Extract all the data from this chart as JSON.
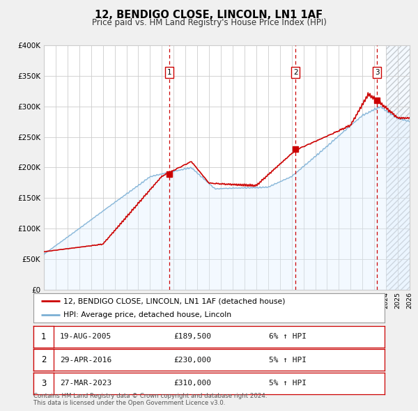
{
  "title": "12, BENDIGO CLOSE, LINCOLN, LN1 1AF",
  "subtitle": "Price paid vs. HM Land Registry's House Price Index (HPI)",
  "legend_label_red": "12, BENDIGO CLOSE, LINCOLN, LN1 1AF (detached house)",
  "legend_label_blue": "HPI: Average price, detached house, Lincoln",
  "footer": "Contains HM Land Registry data © Crown copyright and database right 2024.\nThis data is licensed under the Open Government Licence v3.0.",
  "transactions": [
    {
      "num": 1,
      "date": "19-AUG-2005",
      "price": "£189,500",
      "hpi": "6% ↑ HPI",
      "year": 2005.63
    },
    {
      "num": 2,
      "date": "29-APR-2016",
      "price": "£230,000",
      "hpi": "5% ↑ HPI",
      "year": 2016.33
    },
    {
      "num": 3,
      "date": "27-MAR-2023",
      "price": "£310,000",
      "hpi": "5% ↑ HPI",
      "year": 2023.23
    }
  ],
  "transaction_values": [
    189500,
    230000,
    310000
  ],
  "xlim": [
    1995,
    2026
  ],
  "ylim": [
    0,
    400000
  ],
  "yticks": [
    0,
    50000,
    100000,
    150000,
    200000,
    250000,
    300000,
    350000,
    400000
  ],
  "ytick_labels": [
    "£0",
    "£50K",
    "£100K",
    "£150K",
    "£200K",
    "£250K",
    "£300K",
    "£350K",
    "£400K"
  ],
  "xticks": [
    1995,
    1996,
    1997,
    1998,
    1999,
    2000,
    2001,
    2002,
    2003,
    2004,
    2005,
    2006,
    2007,
    2008,
    2009,
    2010,
    2011,
    2012,
    2013,
    2014,
    2015,
    2016,
    2017,
    2018,
    2019,
    2020,
    2021,
    2022,
    2023,
    2024,
    2025,
    2026
  ],
  "red_color": "#cc0000",
  "blue_color": "#7bafd4",
  "shade_color": "#ddeeff",
  "grid_color": "#cccccc",
  "bg_color": "#f0f0f0",
  "plot_bg": "#ffffff",
  "hatch_color": "#bbbbbb",
  "dashed_line_color": "#cc0000",
  "marker_box_color": "#cc0000"
}
